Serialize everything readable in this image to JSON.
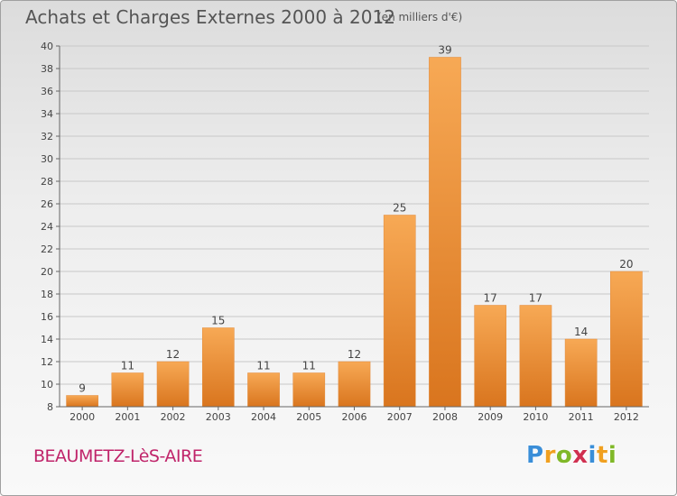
{
  "title": "Achats et Charges Externes 2000 à 2012",
  "unit": "(en milliers d'€)",
  "place": "BEAUMETZ-LèS-AIRE",
  "logo": {
    "letters": [
      "P",
      "r",
      "o",
      "x",
      "i",
      "t",
      "i"
    ],
    "colors": [
      "#3a8ed8",
      "#f0a020",
      "#80b828",
      "#d03050",
      "#3a8ed8",
      "#f0a020",
      "#80b828"
    ]
  },
  "colors": {
    "bar_light": "#f7a955",
    "bar_dark": "#d9751e",
    "grid": "#c8c8c8",
    "axis_text": "#444444",
    "place": "#c0246a"
  },
  "chart_data": {
    "type": "bar",
    "title": "Achats et Charges Externes 2000 à 2012",
    "subtitle": "(en milliers d'€)",
    "categories": [
      "2000",
      "2001",
      "2002",
      "2003",
      "2004",
      "2005",
      "2006",
      "2007",
      "2008",
      "2009",
      "2010",
      "2011",
      "2012"
    ],
    "values": [
      9,
      11,
      12,
      15,
      11,
      11,
      12,
      25,
      39,
      17,
      17,
      14,
      20
    ],
    "ylim": [
      8,
      40
    ],
    "yticks": [
      8,
      10,
      12,
      14,
      16,
      18,
      20,
      22,
      24,
      26,
      28,
      30,
      32,
      34,
      36,
      38,
      40
    ],
    "grid": true,
    "data_labels": true
  }
}
